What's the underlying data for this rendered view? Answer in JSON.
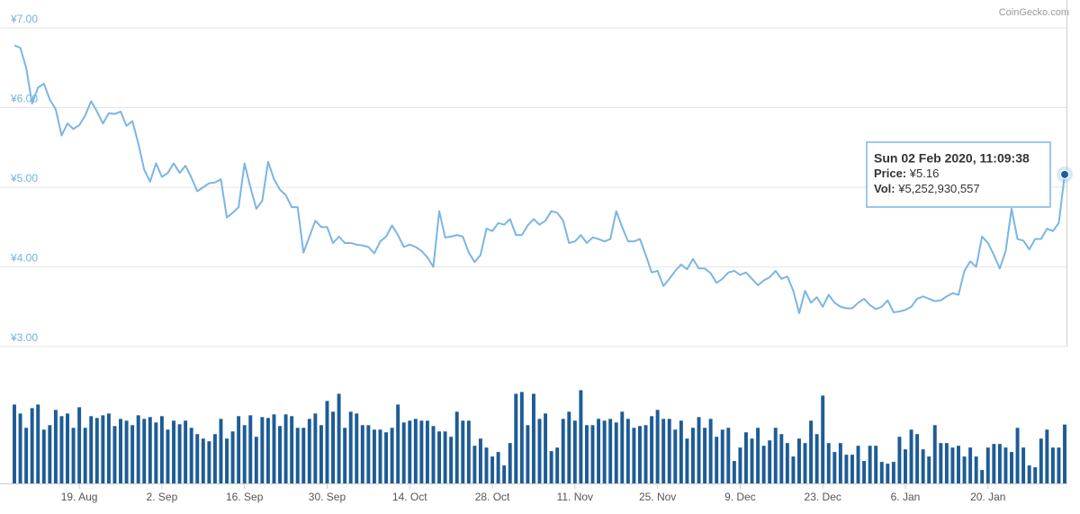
{
  "chart_data": {
    "type": "line",
    "credit": "CoinGecko.com",
    "categories": [
      null,
      null,
      null,
      null,
      null,
      null,
      null,
      null,
      null,
      null,
      null,
      "19. Aug",
      null,
      null,
      null,
      null,
      null,
      null,
      null,
      null,
      null,
      null,
      null,
      null,
      null,
      "2. Sep",
      null,
      null,
      null,
      null,
      null,
      null,
      null,
      null,
      null,
      null,
      null,
      null,
      null,
      "16. Sep",
      null,
      null,
      null,
      null,
      null,
      null,
      null,
      null,
      null,
      null,
      null,
      null,
      null,
      "30. Sep",
      null,
      null,
      null,
      null,
      null,
      null,
      null,
      null,
      null,
      null,
      null,
      null,
      null,
      "14. Oct",
      null,
      null,
      null,
      null,
      null,
      null,
      null,
      null,
      null,
      null,
      null,
      null,
      null,
      "28. Oct",
      null,
      null,
      null,
      null,
      null,
      null,
      null,
      null,
      null,
      null,
      null,
      null,
      null,
      "11. Nov",
      null,
      null,
      null,
      null,
      null,
      null,
      null,
      null,
      null,
      null,
      null,
      null,
      null,
      "25. Nov",
      null,
      null,
      null,
      null,
      null,
      null,
      null,
      null,
      null,
      null,
      null,
      null,
      null,
      "9. Dec",
      null,
      null,
      null,
      null,
      null,
      null,
      null,
      null,
      null,
      null,
      null,
      null,
      null,
      "23. Dec",
      null,
      null,
      null,
      null,
      null,
      null,
      null,
      null,
      null,
      null,
      null,
      null,
      null,
      "6. Jan",
      null,
      null,
      null,
      null,
      null,
      null,
      null,
      null,
      null,
      null,
      null,
      null,
      null,
      "20. Jan",
      null,
      null,
      null,
      null,
      null,
      null,
      null,
      null,
      null,
      null,
      null,
      null,
      null
    ],
    "series": [
      {
        "name": "Price",
        "type": "line",
        "color": "#7cb5e4",
        "values": [
          6.78,
          6.75,
          6.5,
          6.05,
          6.25,
          6.3,
          6.1,
          5.98,
          5.65,
          5.8,
          5.73,
          5.78,
          5.9,
          6.08,
          5.95,
          5.8,
          5.93,
          5.92,
          5.95,
          5.77,
          5.83,
          5.55,
          5.22,
          5.07,
          5.3,
          5.13,
          5.18,
          5.3,
          5.18,
          5.27,
          5.12,
          4.95,
          5.0,
          5.05,
          5.06,
          5.1,
          4.62,
          4.68,
          4.75,
          5.3,
          5.0,
          4.73,
          4.83,
          5.32,
          5.1,
          4.97,
          4.9,
          4.75,
          4.75,
          4.18,
          4.38,
          4.58,
          4.5,
          4.5,
          4.3,
          4.38,
          4.3,
          4.3,
          4.28,
          4.27,
          4.25,
          4.17,
          4.32,
          4.38,
          4.52,
          4.4,
          4.25,
          4.28,
          4.25,
          4.2,
          4.12,
          4.0,
          4.7,
          4.37,
          4.38,
          4.4,
          4.38,
          4.18,
          4.06,
          4.15,
          4.48,
          4.45,
          4.55,
          4.53,
          4.6,
          4.4,
          4.4,
          4.52,
          4.6,
          4.53,
          4.58,
          4.7,
          4.68,
          4.58,
          4.3,
          4.32,
          4.4,
          4.3,
          4.37,
          4.35,
          4.32,
          4.35,
          4.7,
          4.5,
          4.32,
          4.32,
          4.35,
          4.15,
          3.93,
          3.95,
          3.76,
          3.85,
          3.95,
          4.03,
          3.97,
          4.1,
          3.98,
          3.98,
          3.92,
          3.8,
          3.85,
          3.93,
          3.95,
          3.9,
          3.93,
          3.85,
          3.77,
          3.83,
          3.87,
          3.95,
          3.85,
          3.88,
          3.7,
          3.42,
          3.7,
          3.55,
          3.62,
          3.5,
          3.65,
          3.55,
          3.5,
          3.48,
          3.48,
          3.55,
          3.6,
          3.52,
          3.47,
          3.5,
          3.58,
          3.43,
          3.44,
          3.46,
          3.5,
          3.6,
          3.63,
          3.6,
          3.57,
          3.58,
          3.63,
          3.67,
          3.65,
          3.95,
          4.07,
          4.0,
          4.38,
          4.3,
          4.15,
          3.98,
          4.2,
          4.73,
          4.35,
          4.33,
          4.22,
          4.35,
          4.35,
          4.48,
          4.45,
          4.55,
          5.16
        ]
      },
      {
        "name": "Vol",
        "type": "bar",
        "color": "#1d5c96",
        "values": [
          7040000000.0,
          6240000000.0,
          4960000000.0,
          6720000000.0,
          7040000000.0,
          4800000000.0,
          5200000000.0,
          6560000000.0,
          6000000000.0,
          6240000000.0,
          4960000000.0,
          6800000000.0,
          4960000000.0,
          6000000000.0,
          5840000000.0,
          6080000000.0,
          6240000000.0,
          5120000000.0,
          5760000000.0,
          5600000000.0,
          5200000000.0,
          6080000000.0,
          5760000000.0,
          5920000000.0,
          5440000000.0,
          6000000000.0,
          4800000000.0,
          5600000000.0,
          5280000000.0,
          5600000000.0,
          4960000000.0,
          4400000000.0,
          4000000000.0,
          3760000000.0,
          4400000000.0,
          5760000000.0,
          4000000000.0,
          4640000000.0,
          6000000000.0,
          5200000000.0,
          6080000000.0,
          4160000000.0,
          5920000000.0,
          5840000000.0,
          6160000000.0,
          5120000000.0,
          6160000000.0,
          6000000000.0,
          4960000000.0,
          4960000000.0,
          5760000000.0,
          6240000000.0,
          5200000000.0,
          7360000000.0,
          6400000000.0,
          8000000000.0,
          4960000000.0,
          6400000000.0,
          6240000000.0,
          5200000000.0,
          5200000000.0,
          4800000000.0,
          4800000000.0,
          4560000000.0,
          4960000000.0,
          7040000000.0,
          5440000000.0,
          5600000000.0,
          5760000000.0,
          5600000000.0,
          5600000000.0,
          5120000000.0,
          4640000000.0,
          4640000000.0,
          4160000000.0,
          6400000000.0,
          5600000000.0,
          5600000000.0,
          3360000000.0,
          4000000000.0,
          3200000000.0,
          2400000000.0,
          2800000000.0,
          1600000000.0,
          3600000000.0,
          8000000000.0,
          8160000000.0,
          5200000000.0,
          8000000000.0,
          5760000000.0,
          6240000000.0,
          2880000000.0,
          3200000000.0,
          5760000000.0,
          6400000000.0,
          5600000000.0,
          8320000000.0,
          5200000000.0,
          5200000000.0,
          5760000000.0,
          5600000000.0,
          5760000000.0,
          5440000000.0,
          6400000000.0,
          5760000000.0,
          4960000000.0,
          5120000000.0,
          5200000000.0,
          6000000000.0,
          6560000000.0,
          5760000000.0,
          5760000000.0,
          4800000000.0,
          5600000000.0,
          4000000000.0,
          4960000000.0,
          5920000000.0,
          4960000000.0,
          5760000000.0,
          4160000000.0,
          4800000000.0,
          4960000000.0,
          2000000000.0,
          3200000000.0,
          4560000000.0,
          4000000000.0,
          4960000000.0,
          3360000000.0,
          3840000000.0,
          4960000000.0,
          4400000000.0,
          3600000000.0,
          2400000000.0,
          4000000000.0,
          3600000000.0,
          5600000000.0,
          4400000000.0,
          7840000000.0,
          3600000000.0,
          2800000000.0,
          3600000000.0,
          2560000000.0,
          2560000000.0,
          3360000000.0,
          2000000000.0,
          3360000000.0,
          3360000000.0,
          1920000000.0,
          1760000000.0,
          1920000000.0,
          4160000000.0,
          3040000000.0,
          4800000000.0,
          4400000000.0,
          3040000000.0,
          2400000000.0,
          5200000000.0,
          3600000000.0,
          3600000000.0,
          3200000000.0,
          3360000000.0,
          2400000000.0,
          3200000000.0,
          2400000000.0,
          1200000000.0,
          3200000000.0,
          3520000000.0,
          3520000000.0,
          3200000000.0,
          2800000000.0,
          4960000000.0,
          3200000000.0,
          1600000000.0,
          1440000000.0,
          4000000000.0,
          4800000000.0,
          3200000000.0,
          3200000000.0,
          5252930557
        ]
      }
    ],
    "ylim": [
      3,
      7
    ],
    "yticks": [
      {
        "value": 3,
        "label": "¥3.00"
      },
      {
        "value": 4,
        "label": "¥4.00"
      },
      {
        "value": 5,
        "label": "¥5.00"
      },
      {
        "value": 6,
        "label": "¥6.00"
      },
      {
        "value": 7,
        "label": "¥7.00"
      }
    ],
    "volume_ylim": [
      0,
      9000000000.0
    ],
    "grid": true,
    "tooltip": {
      "date": "Sun 02 Feb 2020, 11:09:38",
      "price_label": "Price:",
      "price": "¥5.16",
      "vol_label": "Vol:",
      "vol": "¥5,252,930,557"
    }
  }
}
